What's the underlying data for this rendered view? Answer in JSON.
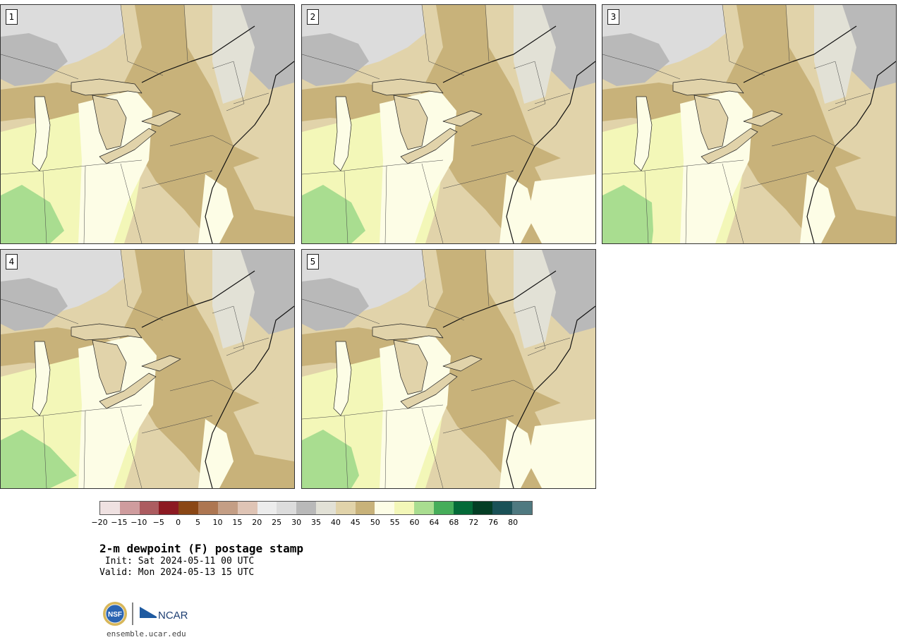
{
  "panels": [
    {
      "label": "1"
    },
    {
      "label": "2"
    },
    {
      "label": "3"
    },
    {
      "label": "4"
    },
    {
      "label": "5"
    }
  ],
  "colorbar": {
    "colors": [
      "#efe1e1",
      "#cf9c9e",
      "#ac5c60",
      "#8c1a22",
      "#8a4715",
      "#ad7651",
      "#c49e85",
      "#dfc4b5",
      "#ececec",
      "#dcdcdc",
      "#b9b9b9",
      "#e2e1d6",
      "#e1d3aa",
      "#c8b27a",
      "#fdfde6",
      "#f3f7b8",
      "#a9dd90",
      "#46ad5a",
      "#046a38",
      "#043e25",
      "#1a5157",
      "#4f7980"
    ],
    "tick_labels": [
      "−20",
      "−15",
      "−10",
      "−5",
      "0",
      "5",
      "10",
      "15",
      "20",
      "25",
      "30",
      "35",
      "40",
      "45",
      "50",
      "55",
      "60",
      "64",
      "68",
      "72",
      "76",
      "80"
    ]
  },
  "title": "2-m dewpoint (F) postage stamp",
  "init_line": " Init: Sat 2024-05-11 00 UTC",
  "valid_line": "Valid: Mon 2024-05-13 15 UTC",
  "logo": {
    "nsf_text": "NSF",
    "ncar_text": "NCAR"
  },
  "url": "ensemble.ucar.edu"
}
